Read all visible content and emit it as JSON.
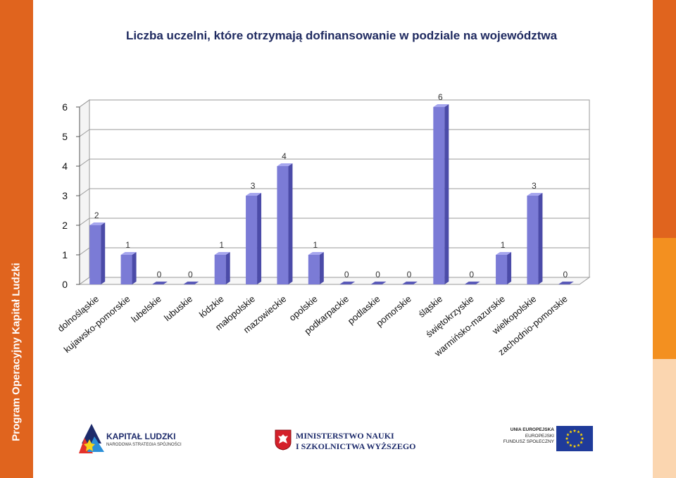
{
  "sidebar": {
    "text": "Program Operacyjny Kapitał Ludzki"
  },
  "chart_data": {
    "type": "bar",
    "title": "Liczba uczelni, które otrzymają dofinansowanie w podziale na województwa",
    "categories": [
      "dolnośląskie",
      "kujawsko-pomorskie",
      "lubelskie",
      "lubuskie",
      "łódzkie",
      "małopolskie",
      "mazowieckie",
      "opolskie",
      "podkarpackie",
      "podlaskie",
      "pomorskie",
      "śląskie",
      "świętokrzyskie",
      "warmińsko-mazurskie",
      "wielkopolskie",
      "zachodnio-pomorskie"
    ],
    "values": [
      2,
      1,
      0,
      0,
      1,
      3,
      4,
      1,
      0,
      0,
      0,
      6,
      0,
      1,
      3,
      0
    ],
    "yticks": [
      "0",
      "1",
      "2",
      "3",
      "4",
      "5",
      "6"
    ],
    "ylim": [
      0,
      6
    ],
    "grid": true,
    "bar_color": "#7b7bd6",
    "xlabel": "",
    "ylabel": ""
  },
  "footer": {
    "kapital_title": "KAPITAŁ LUDZKI",
    "kapital_sub": "NARODOWA STRATEGIA SPÓJNOŚCI",
    "ministry_line1": "MINISTERSTWO NAUKI",
    "ministry_line2": "I SZKOLNICTWA WYŻSZEGO",
    "ue_line1": "UNIA EUROPEJSKA",
    "ue_line2": "EUROPEJSKI",
    "ue_line3": "FUNDUSZ SPOŁECZNY"
  }
}
